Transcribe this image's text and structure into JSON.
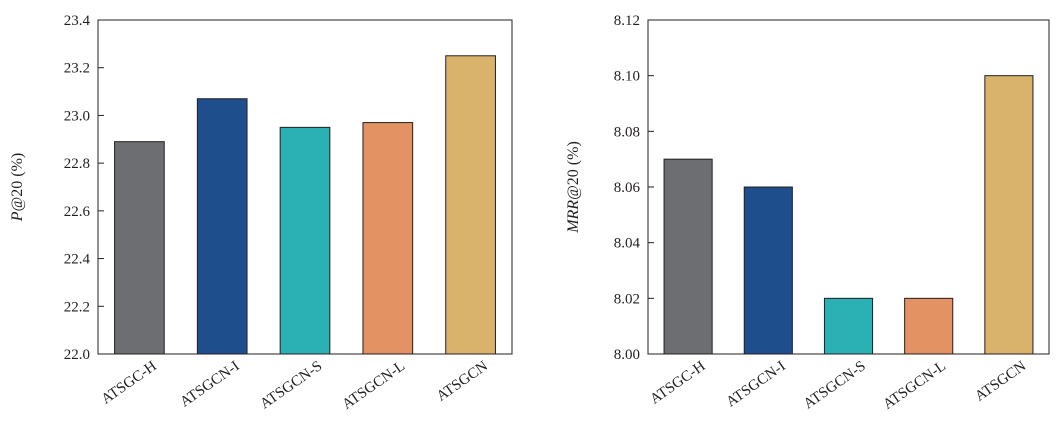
{
  "chart_data": [
    {
      "type": "bar",
      "title": "",
      "xlabel": "",
      "ylabel": "P@20 (%)",
      "ylabel_italic_part": "P",
      "ylabel_rest": "@20 (%)",
      "ylim": [
        22.0,
        23.4
      ],
      "yticks": [
        22.0,
        22.2,
        22.4,
        22.6,
        22.8,
        23.0,
        23.2,
        23.4
      ],
      "ytick_labels": [
        "22.0",
        "22.2",
        "22.4",
        "22.6",
        "22.8",
        "23.0",
        "23.2",
        "23.4"
      ],
      "categories": [
        "ATSGC-H",
        "ATSGCN-I",
        "ATSGCN-S",
        "ATSGCN-L",
        "ATSGCN"
      ],
      "values": [
        22.89,
        23.07,
        22.95,
        22.97,
        23.25
      ],
      "colors": [
        "#6c6e71",
        "#1f4e8c",
        "#2bb0b4",
        "#e29263",
        "#d9b26c"
      ],
      "grid": false
    },
    {
      "type": "bar",
      "title": "",
      "xlabel": "",
      "ylabel": "MRR@20 (%)",
      "ylabel_italic_part": "MRR",
      "ylabel_rest": "@20 (%)",
      "ylim": [
        8.0,
        8.12
      ],
      "yticks": [
        8.0,
        8.02,
        8.04,
        8.06,
        8.08,
        8.1,
        8.12
      ],
      "ytick_labels": [
        "8.00",
        "8.02",
        "8.04",
        "8.06",
        "8.08",
        "8.10",
        "8.12"
      ],
      "categories": [
        "ATSGC-H",
        "ATSGCN-I",
        "ATSGCN-S",
        "ATSGCN-L",
        "ATSGCN"
      ],
      "values": [
        8.07,
        8.06,
        8.02,
        8.02,
        8.1
      ],
      "colors": [
        "#6c6e71",
        "#1f4e8c",
        "#2bb0b4",
        "#e29263",
        "#d9b26c"
      ],
      "grid": false
    }
  ]
}
